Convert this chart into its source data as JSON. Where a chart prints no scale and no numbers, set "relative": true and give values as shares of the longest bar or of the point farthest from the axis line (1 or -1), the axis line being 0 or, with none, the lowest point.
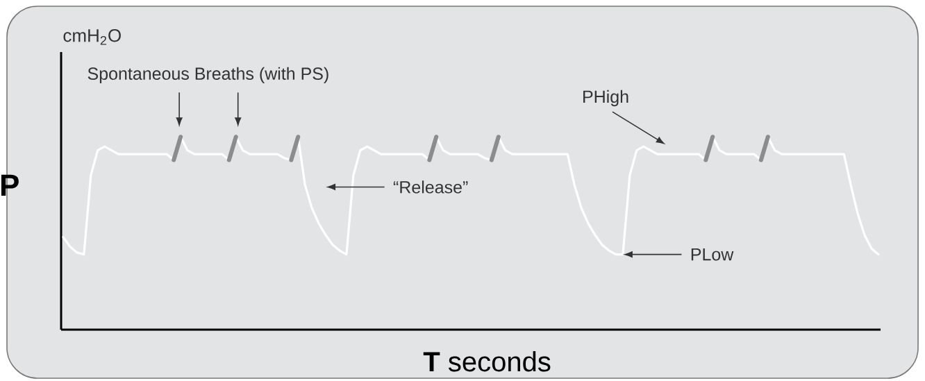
{
  "chart_data": {
    "type": "line",
    "relative": true,
    "xlabel": "**T** seconds",
    "ylabel": "P",
    "annotations": [
      "cmH$_{2}$O",
      "Spontaneous Breaths (with PS)",
      "“Release”",
      "PHigh",
      "PLow"
    ],
    "categories": [
      null,
      null,
      null,
      null,
      null,
      null,
      null,
      null,
      null,
      null,
      null,
      null,
      null,
      null,
      null,
      null,
      null,
      null,
      null,
      null,
      null,
      null,
      null,
      null,
      null,
      null,
      null,
      null,
      null,
      null,
      null,
      null,
      null,
      null,
      null,
      null,
      null,
      null,
      null,
      null,
      null,
      null,
      null,
      null,
      null,
      null,
      null,
      null,
      null,
      null,
      null,
      null,
      null,
      null,
      null,
      null,
      null,
      null,
      null,
      null,
      null,
      null,
      null,
      null,
      null,
      null,
      null,
      null,
      null,
      null,
      null,
      null,
      null,
      null,
      null,
      null,
      null,
      null,
      null,
      null,
      null,
      null,
      null,
      null,
      null,
      null,
      null,
      null,
      null,
      null,
      null,
      null,
      null,
      null,
      null,
      null,
      null,
      null,
      null,
      null,
      null,
      null,
      null,
      null,
      null,
      null,
      null,
      null,
      null,
      null,
      null,
      null,
      null,
      null,
      null,
      null,
      null,
      null,
      null
    ],
    "marker": "none",
    "line_style": "solid",
    "series": [
      {
        "color": "#ffffff",
        "values": [
          0.48,
          0.43,
          0.4,
          0.39,
          0.8,
          0.93,
          0.95,
          0.93,
          0.91,
          0.91,
          0.91,
          0.91,
          0.91,
          0.91,
          0.91,
          0.91,
          0.88,
          1,
          0.93,
          0.91,
          0.91,
          0.91,
          0.91,
          0.91,
          0.88,
          1,
          0.93,
          0.91,
          0.91,
          0.91,
          0.91,
          0.91,
          0.89,
          0.88,
          1,
          0.75,
          0.63,
          0.55,
          0.49,
          0.44,
          0.41,
          0.39,
          0.8,
          0.93,
          0.95,
          0.93,
          0.91,
          0.91,
          0.91,
          0.91,
          0.91,
          0.91,
          0.91,
          0.88,
          1,
          0.93,
          0.91,
          0.91,
          0.91,
          0.91,
          0.91,
          0.89,
          0.88,
          1,
          0.93,
          0.91,
          0.91,
          0.91,
          0.91,
          0.91,
          0.91,
          0.91,
          0.91,
          0.91,
          0.75,
          0.63,
          0.55,
          0.49,
          0.44,
          0.41,
          0.39,
          0.39,
          0.8,
          0.93,
          0.95,
          0.93,
          0.91,
          0.91,
          0.91,
          0.91,
          0.91,
          0.91,
          0.91,
          0.88,
          1,
          0.93,
          0.91,
          0.91,
          0.91,
          0.91,
          0.91,
          0.88,
          1,
          0.93,
          0.91,
          0.91,
          0.91,
          0.91,
          0.91,
          0.91,
          0.91,
          0.91,
          0.91,
          0.91,
          0.75,
          0.6,
          0.49,
          0.42,
          0.39
        ]
      },
      {
        "color": "#8c8c8c",
        "values": [
          null,
          null,
          null,
          null,
          null,
          null,
          null,
          null,
          null,
          null,
          null,
          null,
          null,
          null,
          null,
          null,
          0.88,
          1,
          null,
          null,
          null,
          null,
          null,
          null,
          0.88,
          1,
          null,
          null,
          null,
          null,
          null,
          null,
          null,
          0.88,
          1,
          null,
          null,
          null,
          null,
          null,
          null,
          null,
          null,
          null,
          null,
          null,
          null,
          null,
          null,
          null,
          null,
          null,
          null,
          0.88,
          1,
          null,
          null,
          null,
          null,
          null,
          null,
          null,
          0.88,
          1,
          null,
          null,
          null,
          null,
          null,
          null,
          null,
          null,
          null,
          null,
          null,
          null,
          null,
          null,
          null,
          null,
          null,
          null,
          null,
          null,
          null,
          null,
          null,
          null,
          null,
          null,
          null,
          null,
          null,
          0.88,
          1,
          null,
          null,
          null,
          null,
          null,
          null,
          0.88,
          1,
          null,
          null,
          null,
          null,
          null,
          null,
          null,
          null,
          null,
          null,
          null,
          null,
          null,
          null,
          null,
          null
        ]
      }
    ]
  }
}
